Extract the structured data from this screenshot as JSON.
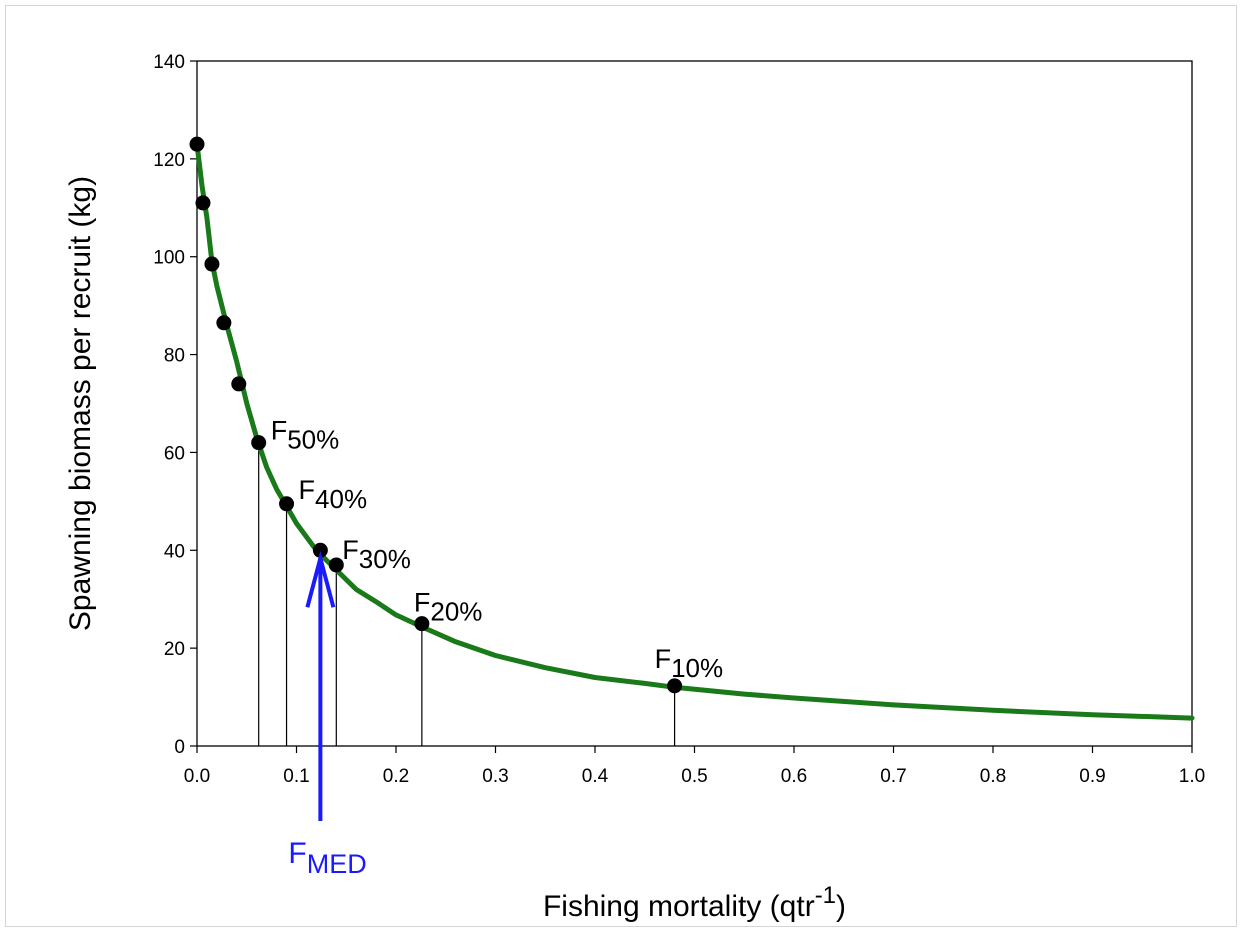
{
  "chart_data": {
    "type": "line",
    "xlabel": {
      "main": "Fishing mortality (qtr",
      "sup": "-1",
      "close": ")"
    },
    "ylabel": "Spawning biomass per recruit (kg)",
    "xlim": [
      0,
      1.0
    ],
    "ylim": [
      0,
      140
    ],
    "x_ticks": [
      "0.0",
      "0.1",
      "0.2",
      "0.3",
      "0.4",
      "0.5",
      "0.6",
      "0.7",
      "0.8",
      "0.9",
      "1.0"
    ],
    "y_ticks": [
      "0",
      "20",
      "40",
      "60",
      "80",
      "100",
      "120",
      "140"
    ],
    "grid": false,
    "curve_color": "#1a7a1a",
    "curve": {
      "x": [
        0,
        0.005,
        0.01,
        0.015,
        0.02,
        0.03,
        0.04,
        0.05,
        0.06,
        0.07,
        0.08,
        0.09,
        0.1,
        0.12,
        0.14,
        0.16,
        0.18,
        0.2,
        0.23,
        0.26,
        0.3,
        0.35,
        0.4,
        0.45,
        0.48,
        0.55,
        0.6,
        0.7,
        0.8,
        0.9,
        1.0
      ],
      "y": [
        123,
        114.5,
        108,
        99,
        94,
        86,
        78.5,
        70,
        63,
        57,
        52.5,
        49,
        45.5,
        40,
        36,
        32,
        29.5,
        26.8,
        24,
        21.3,
        18.5,
        16,
        14,
        12.8,
        12,
        10.6,
        9.8,
        8.4,
        7.3,
        6.4,
        5.7
      ]
    },
    "points": {
      "x": [
        0.0,
        0.006,
        0.015,
        0.027,
        0.042,
        0.062,
        0.09,
        0.124,
        0.14,
        0.226,
        0.48
      ],
      "y": [
        123,
        111,
        98.5,
        86.5,
        74,
        62,
        49.5,
        40,
        37,
        25,
        12.3
      ]
    },
    "reference_lines": [
      {
        "x": 0.062,
        "y": 62,
        "label": "F",
        "sub": "50%"
      },
      {
        "x": 0.09,
        "y": 49.5,
        "label": "F",
        "sub": "40%"
      },
      {
        "x": 0.14,
        "y": 37,
        "label": "F",
        "sub": "30%"
      },
      {
        "x": 0.226,
        "y": 25,
        "label": "F",
        "sub": "20%"
      },
      {
        "x": 0.48,
        "y": 12.3,
        "label": "F",
        "sub": "10%"
      }
    ],
    "fmed": {
      "x": 0.124,
      "y": 40,
      "label": "F",
      "sub": "MED",
      "color": "#1a1aff"
    }
  }
}
